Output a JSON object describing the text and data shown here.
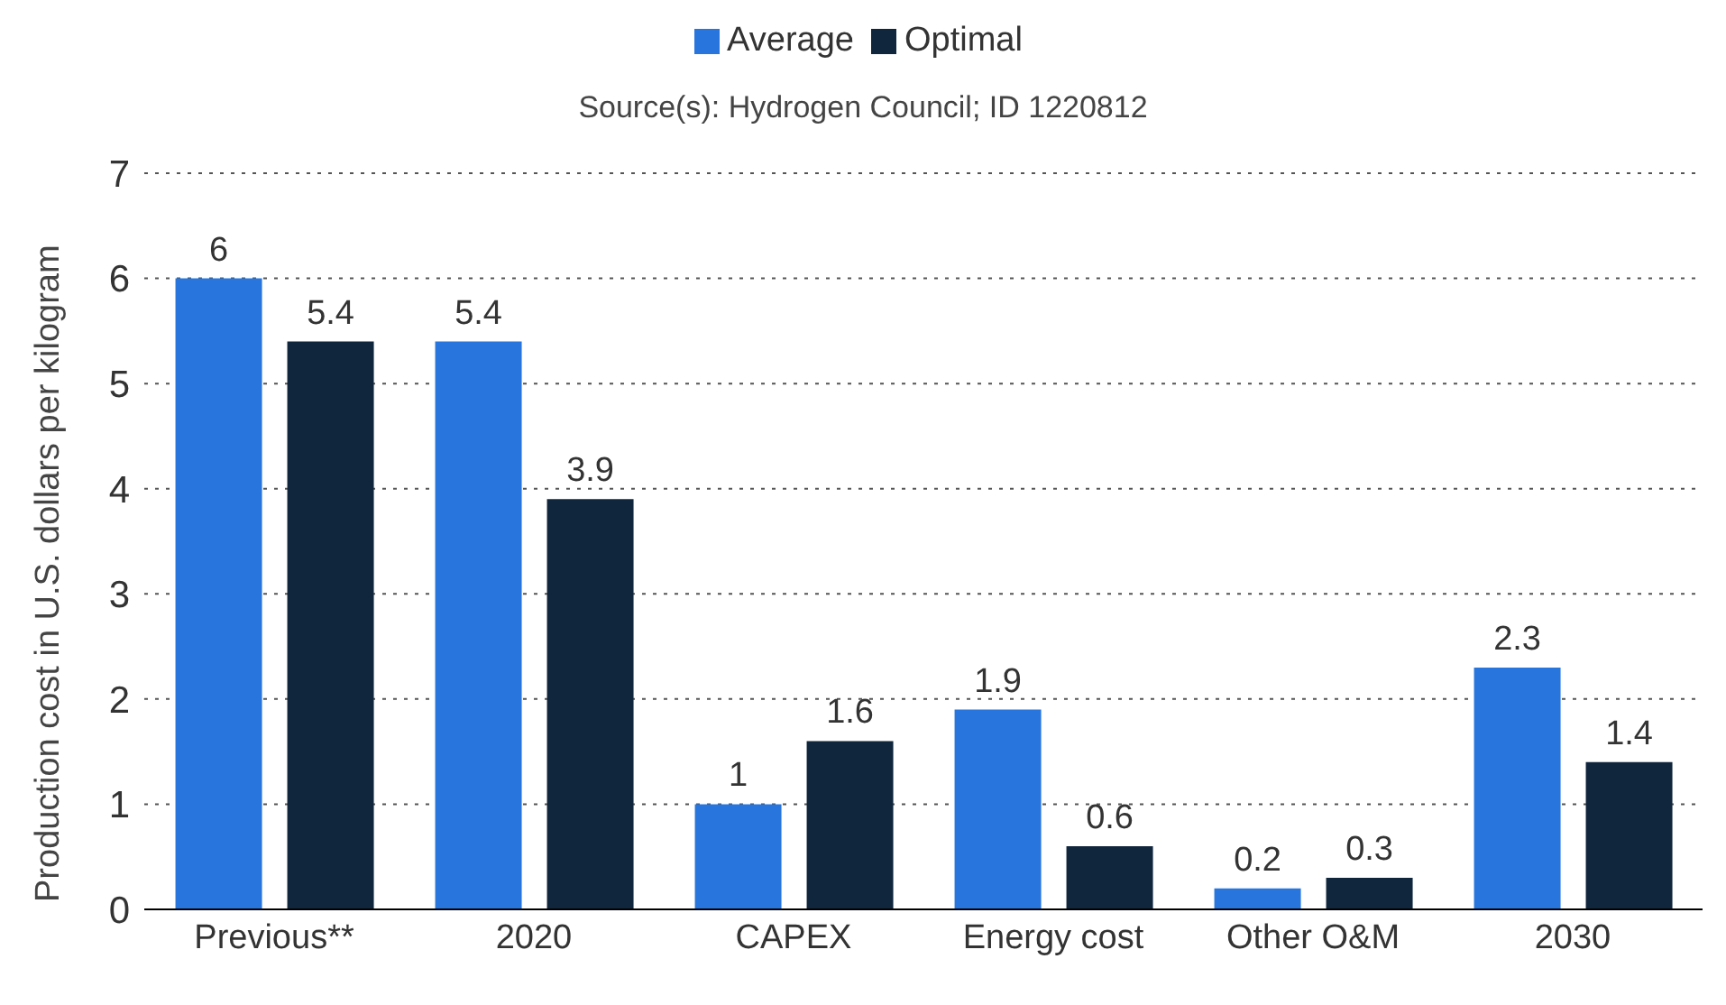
{
  "chart_data": {
    "type": "bar",
    "annotations": [
      "Source(s): Hydrogen Council; ID 1220812"
    ],
    "ylabel": "Production cost in U.S. dollars per kilogram",
    "categories": [
      "Previous**",
      "2020",
      "CAPEX",
      "Energy cost",
      "Other O&M",
      "2030"
    ],
    "series": [
      {
        "name": "Average",
        "color": "#2876dd",
        "values": [
          6,
          5.4,
          1,
          1.9,
          0.2,
          2.3
        ]
      },
      {
        "name": "Optimal",
        "color": "#10263d",
        "values": [
          5.4,
          3.9,
          1.6,
          0.6,
          0.3,
          1.4
        ]
      }
    ],
    "ylim": [
      0,
      7
    ],
    "yticks": [
      0,
      1,
      2,
      3,
      4,
      5,
      6,
      7
    ],
    "grid": "y",
    "legend": "top",
    "data_labels": true
  }
}
